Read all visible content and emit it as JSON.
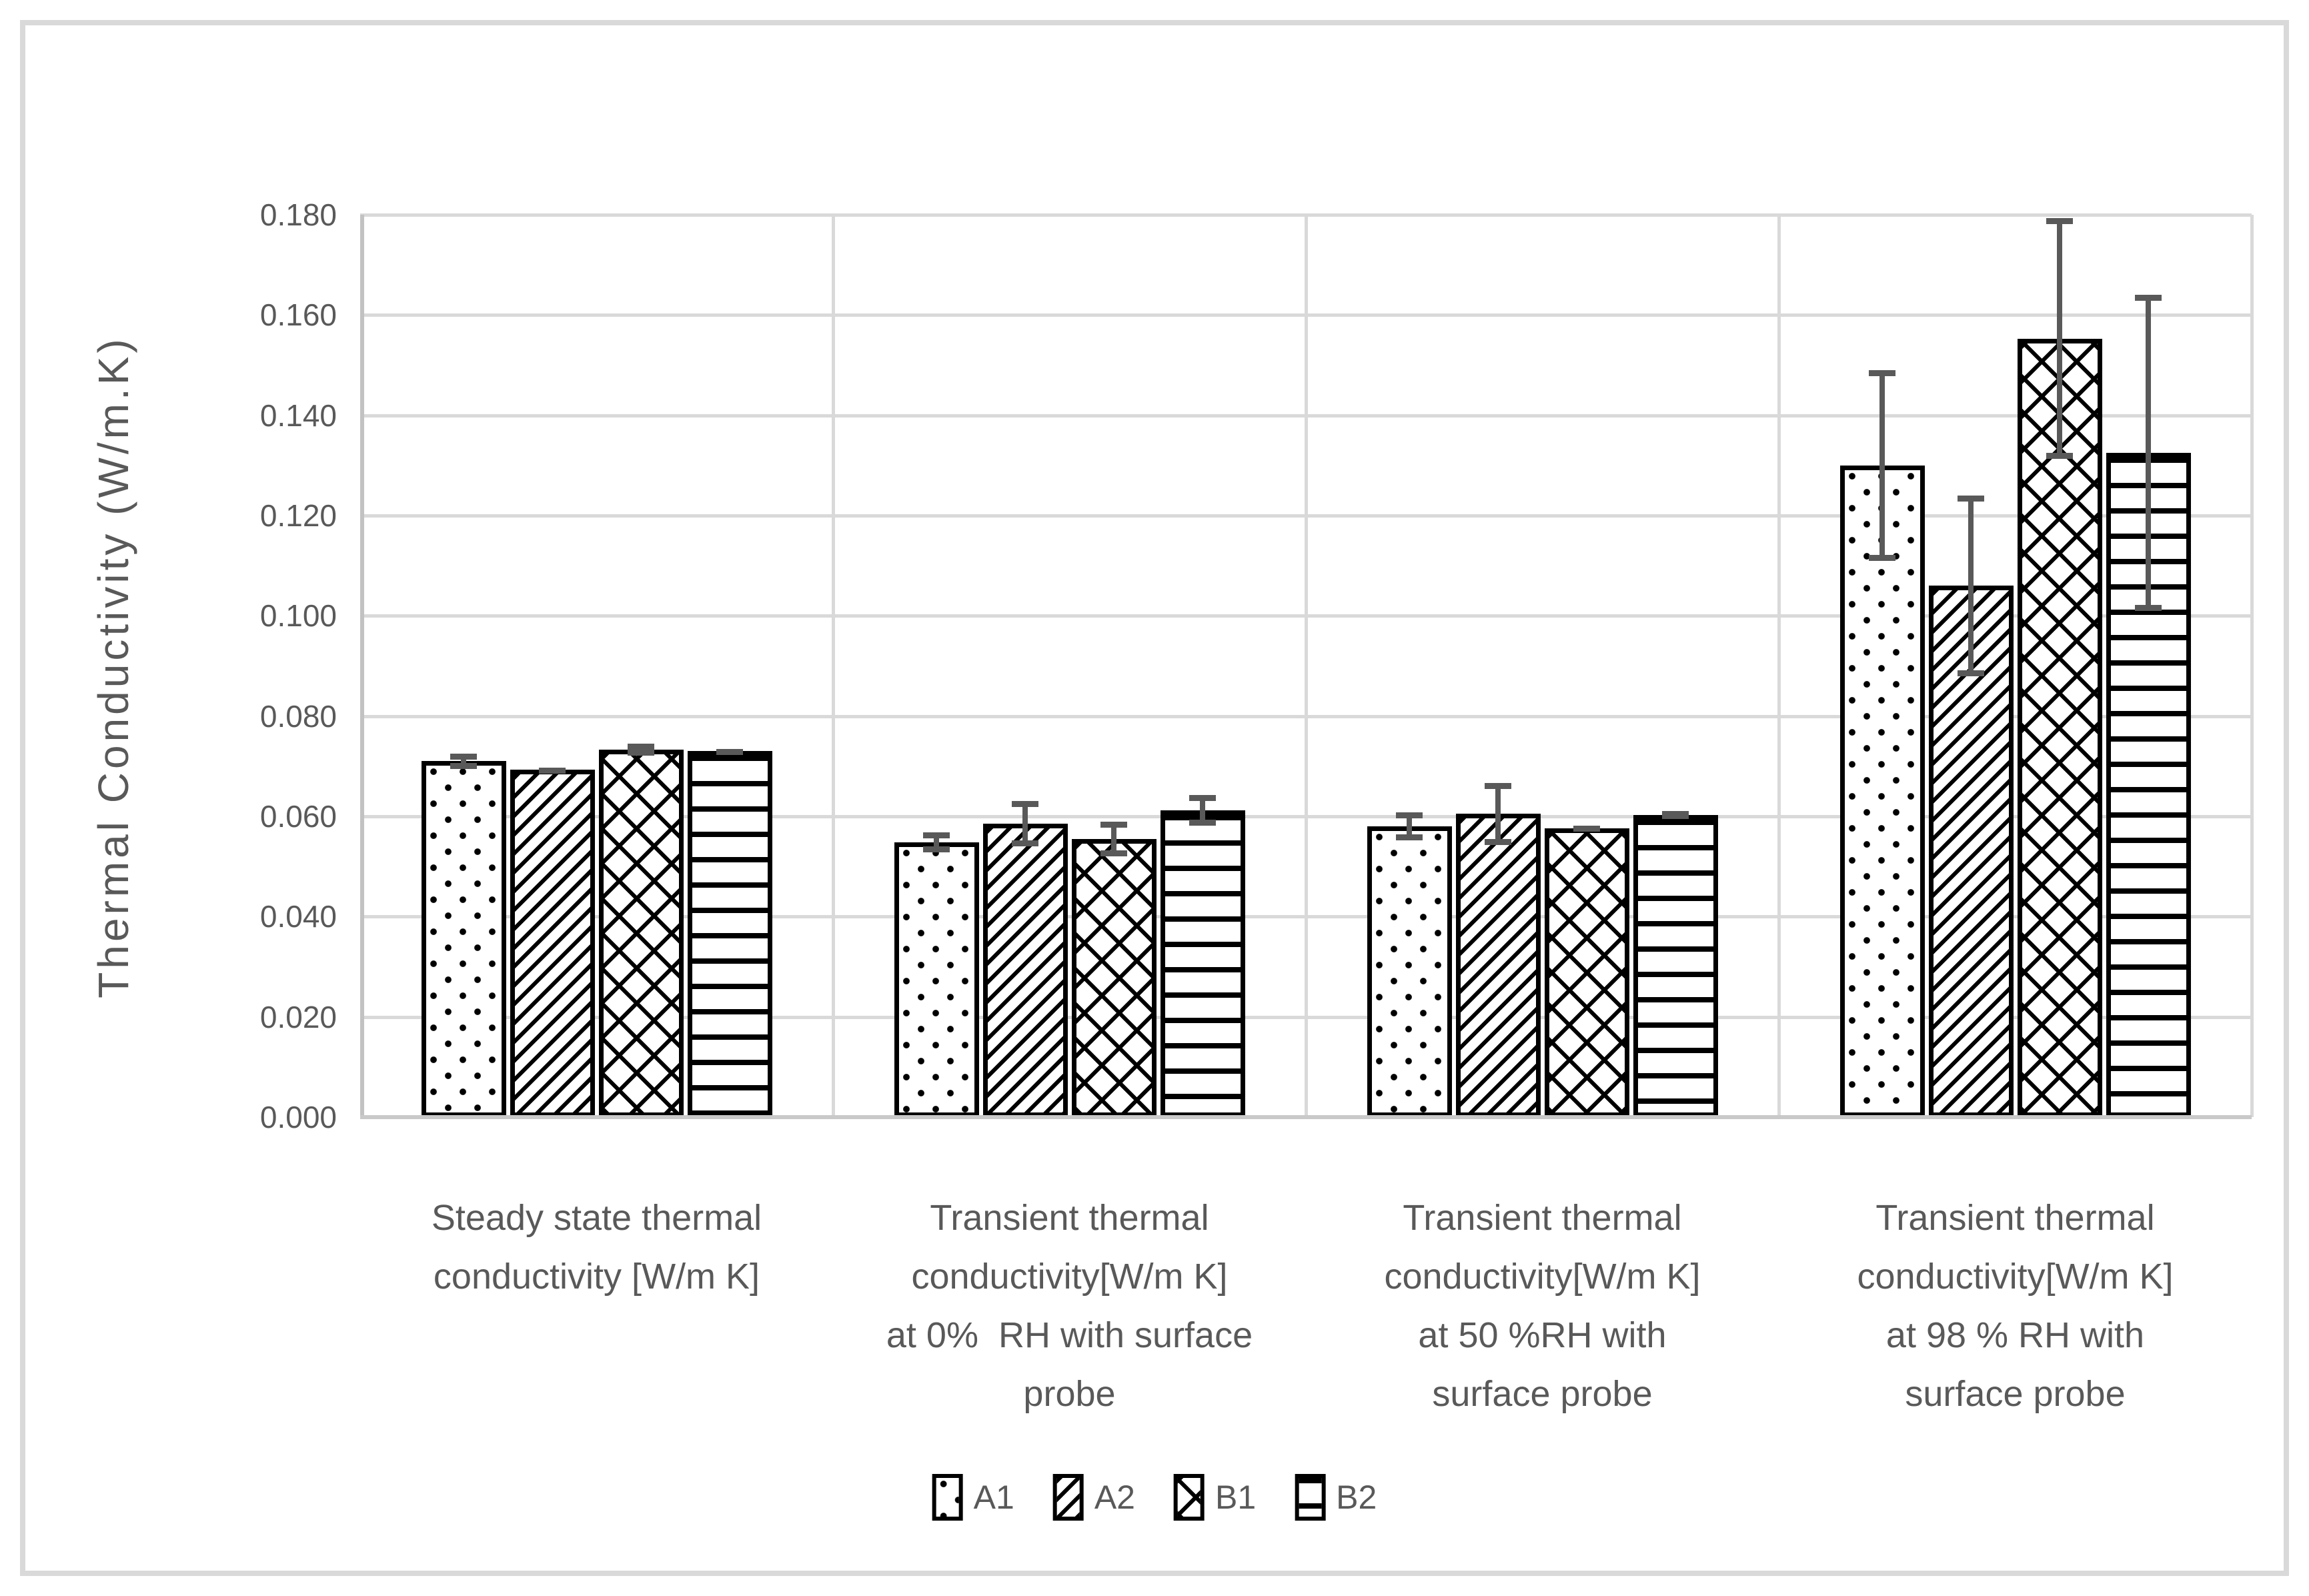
{
  "figure": {
    "background": "#FFFFFF",
    "frame_border_color": "#D9D9D9"
  },
  "chart_data": {
    "type": "bar",
    "title": "",
    "xlabel": "",
    "ylabel": "Thermal Conductivity (W/m.K)",
    "ylim": [
      0,
      0.18
    ],
    "grid": true,
    "legend_position": "bottom-center",
    "gridline_color": "#D9D9D9",
    "axis_color": "#C2C2C2",
    "error_bar_color": "#595959",
    "text_color": "#595959",
    "bar_fill": "#FFFFFF",
    "pattern_color": "#000000",
    "yticks": [
      {
        "value": 0.0,
        "label": "0.000"
      },
      {
        "value": 0.02,
        "label": "0.020"
      },
      {
        "value": 0.04,
        "label": "0.040"
      },
      {
        "value": 0.06,
        "label": "0.060"
      },
      {
        "value": 0.08,
        "label": "0.080"
      },
      {
        "value": 0.1,
        "label": "0.100"
      },
      {
        "value": 0.12,
        "label": "0.120"
      },
      {
        "value": 0.14,
        "label": "0.140"
      },
      {
        "value": 0.16,
        "label": "0.160"
      },
      {
        "value": 0.18,
        "label": "0.180"
      }
    ],
    "categories": [
      {
        "label": "Steady state thermal conductivity [W/m K]",
        "lines": [
          "Steady state thermal",
          "conductivity [W/m K]"
        ]
      },
      {
        "label": "Transient thermal conductivity[W/m K] at 0%  RH with surface probe",
        "lines": [
          "Transient thermal",
          "conductivity[W/m K]",
          "at 0%  RH with surface",
          "probe"
        ]
      },
      {
        "label": "Transient thermal conductivity[W/m K] at 50 %RH with surface probe",
        "lines": [
          "Transient thermal",
          "conductivity[W/m K]",
          "at 50 %RH with",
          "surface probe"
        ]
      },
      {
        "label": "Transient thermal conductivity[W/m K] at 98 % RH with surface probe",
        "lines": [
          "Transient thermal",
          "conductivity[W/m K]",
          "at 98 % RH with",
          "surface probe"
        ]
      }
    ],
    "series": [
      {
        "name": "A1",
        "pattern": "dots",
        "values": [
          0.071,
          0.0548,
          0.058,
          0.13
        ],
        "errors": [
          0.0015,
          0.002,
          0.0028,
          0.019
        ]
      },
      {
        "name": "A2",
        "pattern": "diagonal-up",
        "values": [
          0.0693,
          0.0585,
          0.0605,
          0.106
        ],
        "errors": [
          0.0004,
          0.0045,
          0.0062,
          0.018
        ]
      },
      {
        "name": "B1",
        "pattern": "diamond-crosshatch",
        "values": [
          0.0733,
          0.0555,
          0.0576,
          0.1553
        ],
        "errors": [
          0.0012,
          0.0035,
          0.0006,
          0.024
        ]
      },
      {
        "name": "B2",
        "pattern": "horizontal-lines",
        "values": [
          0.073,
          0.0612,
          0.0602,
          0.1325
        ],
        "errors": [
          0.0004,
          0.003,
          0.0008,
          0.0315
        ]
      }
    ]
  }
}
